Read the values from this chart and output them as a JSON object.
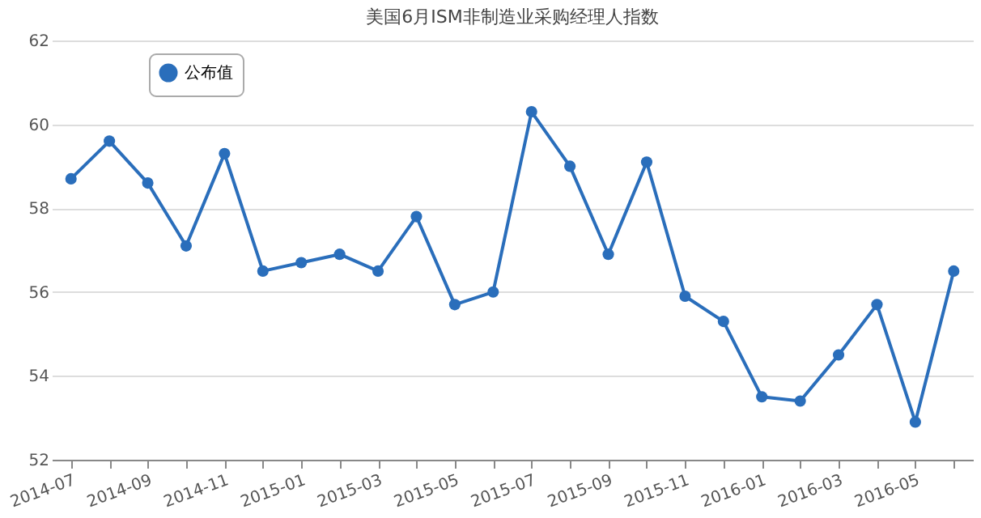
{
  "chart_data": {
    "type": "line",
    "title": "美国6月ISM非制造业采购经理人指数",
    "categories": [
      "2014-07",
      null,
      "2014-09",
      null,
      "2014-11",
      null,
      "2015-01",
      null,
      "2015-03",
      null,
      "2015-05",
      null,
      "2015-07",
      null,
      "2015-09",
      null,
      "2015-11",
      null,
      "2016-01",
      null,
      "2016-03",
      null,
      "2016-05",
      null
    ],
    "series": [
      {
        "name": "公布值",
        "color": "#2a6ebb",
        "values": [
          58.7,
          59.6,
          58.6,
          57.1,
          59.3,
          56.5,
          56.7,
          56.9,
          56.5,
          57.8,
          55.7,
          56.0,
          60.3,
          59.0,
          56.9,
          59.1,
          55.9,
          55.3,
          53.5,
          53.4,
          54.5,
          55.7,
          52.9,
          56.5
        ]
      }
    ],
    "ylim": [
      52,
      62
    ],
    "yticks": [
      52,
      54,
      56,
      58,
      60,
      62
    ],
    "grid": "y",
    "legend": "top left",
    "marker": "circle",
    "line_style": "solid"
  }
}
